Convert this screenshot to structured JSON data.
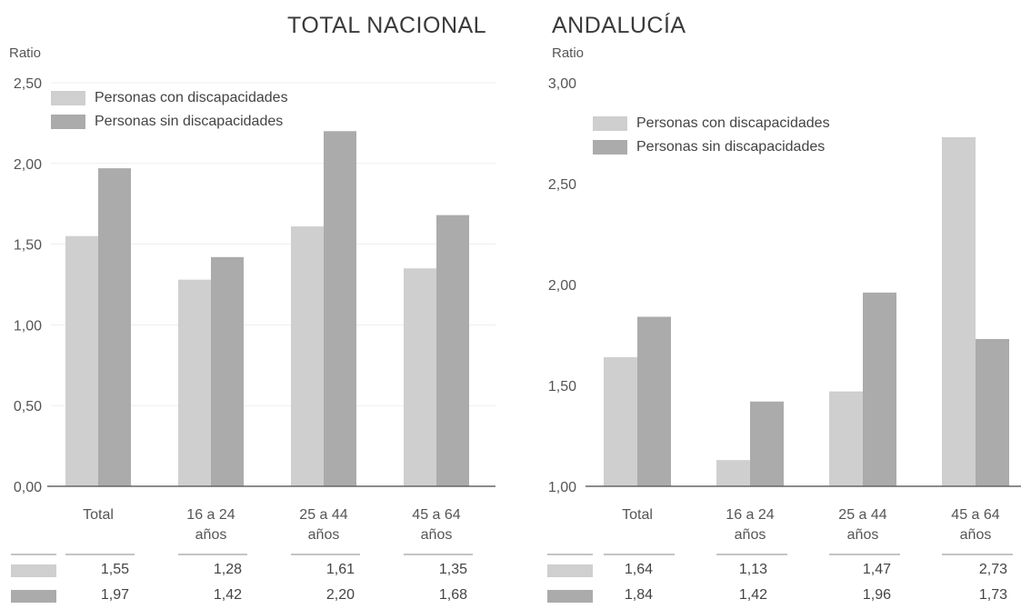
{
  "chart_data": [
    {
      "type": "bar",
      "title": "TOTAL NACIONAL",
      "ylabel": "Ratio",
      "ylim": [
        0,
        2.5
      ],
      "yticks": [
        "0,00",
        "0,50",
        "1,00",
        "1,50",
        "2,00",
        "2,50"
      ],
      "categories": [
        "Total",
        "16 a 24\naños",
        "25 a 44\naños",
        "45 a 64\naños"
      ],
      "series": [
        {
          "name": "Personas con discapacidades",
          "values": [
            1.55,
            1.28,
            1.61,
            1.35
          ],
          "labels": [
            "1,55",
            "1,28",
            "1,61",
            "1,35"
          ],
          "color": "#cfcfcf"
        },
        {
          "name": "Personas sin discapacidades",
          "values": [
            1.97,
            1.42,
            2.2,
            1.68
          ],
          "labels": [
            "1,97",
            "1,42",
            "2,20",
            "1,68"
          ],
          "color": "#ababab"
        }
      ],
      "grid": true,
      "legend": "top-left"
    },
    {
      "type": "bar",
      "title": "ANDALUCÍA",
      "ylabel": "Ratio",
      "ylim": [
        1,
        3
      ],
      "yticks": [
        "1,00",
        "1,50",
        "2,00",
        "2,50",
        "3,00"
      ],
      "categories": [
        "Total",
        "16 a 24\naños",
        "25 a 44\naños",
        "45 a 64\naños"
      ],
      "series": [
        {
          "name": "Personas con discapacidades",
          "values": [
            1.64,
            1.13,
            1.47,
            2.73
          ],
          "labels": [
            "1,64",
            "1,13",
            "1,47",
            "2,73"
          ],
          "color": "#cfcfcf"
        },
        {
          "name": "Personas sin discapacidades",
          "values": [
            1.84,
            1.42,
            1.96,
            1.73
          ],
          "labels": [
            "1,84",
            "1,42",
            "1,96",
            "1,73"
          ],
          "color": "#ababab"
        }
      ],
      "grid": false,
      "legend": "top-left"
    }
  ]
}
